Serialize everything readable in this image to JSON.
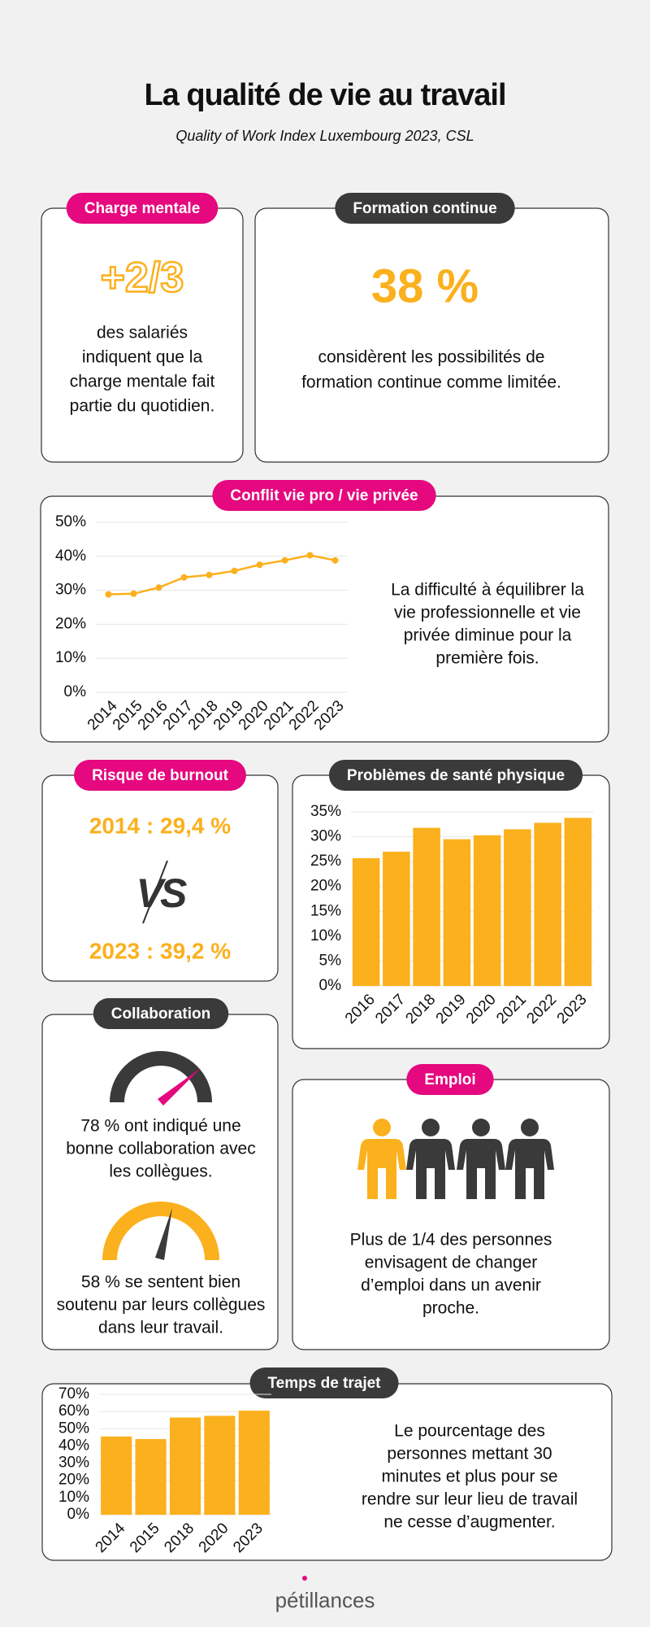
{
  "title": "La qualité de vie au travail",
  "subtitle": "Quality of Work Index Luxembourg 2023, CSL",
  "charge_mentale": {
    "tag": "Charge mentale",
    "figure": "+2/3",
    "text": [
      "des salariés",
      "indiquent que la",
      "charge mentale fait",
      "partie du quotidien."
    ]
  },
  "formation": {
    "tag": "Formation continue",
    "figure": "38 %",
    "text": [
      "considèrent les possibilités de",
      "formation continue comme limitée."
    ]
  },
  "burnout": {
    "tag": "Risque de burnout",
    "first": "2014 : 29,4 %",
    "vs": "VS",
    "second": "2023 : 39,2 %"
  },
  "collaboration": {
    "tag": "Collaboration",
    "text1": [
      "78 % ont indiqué une",
      "bonne collaboration avec",
      "les collègues."
    ],
    "text2": [
      "58 % se sentent bien",
      "soutenu par leurs collègues",
      "dans leur travail."
    ]
  },
  "emploi": {
    "tag": "Emploi",
    "text": [
      "Plus de 1/4 des personnes",
      "envisagent de changer",
      "d’emploi dans un avenir",
      "proche."
    ]
  },
  "chart_data": [
    {
      "type": "line",
      "title": "Conflit vie pro / vie privée",
      "description": [
        "La difficulté à équilibrer la",
        "vie professionnelle et vie",
        "privée diminue pour la",
        "première fois."
      ],
      "categories": [
        "2014",
        "2015",
        "2016",
        "2017",
        "2018",
        "2019",
        "2020",
        "2021",
        "2022",
        "2023"
      ],
      "values": [
        28.8,
        29,
        30.8,
        33.8,
        34.5,
        35.7,
        37.5,
        38.8,
        40.3,
        38.8
      ],
      "color": "#fbb01d",
      "ylim": [
        0,
        50
      ],
      "yticks": [
        {
          "value": 0,
          "label": "0%"
        },
        {
          "value": 10,
          "label": "10%"
        },
        {
          "value": 20,
          "label": "20%"
        },
        {
          "value": 30,
          "label": "30%"
        },
        {
          "value": 40,
          "label": "40%"
        },
        {
          "value": 50,
          "label": "50%"
        }
      ],
      "grid": true
    },
    {
      "type": "bar",
      "title": "Problèmes de santé physique",
      "categories": [
        "2016",
        "2017",
        "2018",
        "2019",
        "2020",
        "2021",
        "2022",
        "2023"
      ],
      "values": [
        25.7,
        27.0,
        31.8,
        29.5,
        30.3,
        31.5,
        32.8,
        33.8
      ],
      "color": "#fbb01d",
      "ylim": [
        0,
        35
      ],
      "yticks": [
        {
          "value": 0,
          "label": "0%"
        },
        {
          "value": 5,
          "label": "5%"
        },
        {
          "value": 10,
          "label": "10%"
        },
        {
          "value": 15,
          "label": "15%"
        },
        {
          "value": 20,
          "label": "20%"
        },
        {
          "value": 25,
          "label": "25%"
        },
        {
          "value": 30,
          "label": "30%"
        },
        {
          "value": 35,
          "label": "35%"
        }
      ],
      "grid": true
    },
    {
      "type": "bar",
      "title": "Temps de trajet",
      "description": [
        "Le pourcentage des",
        "personnes mettant 30",
        "minutes et plus pour se",
        "rendre sur leur lieu de travail",
        "ne cesse d’augmenter."
      ],
      "categories": [
        "2014",
        "2015",
        "2018",
        "2020",
        "2023"
      ],
      "values": [
        45.5,
        44,
        56.5,
        57.5,
        60.5
      ],
      "color": "#fbb01d",
      "ylim": [
        0,
        70
      ],
      "yticks": [
        {
          "value": 0,
          "label": "0%"
        },
        {
          "value": 10,
          "label": "10%"
        },
        {
          "value": 20,
          "label": "20%"
        },
        {
          "value": 30,
          "label": "30%"
        },
        {
          "value": 40,
          "label": "40%"
        },
        {
          "value": 50,
          "label": "50%"
        },
        {
          "value": 60,
          "label": "60%"
        },
        {
          "value": 70,
          "label": "70%"
        }
      ],
      "grid": true
    }
  ],
  "logo": "pétillances"
}
